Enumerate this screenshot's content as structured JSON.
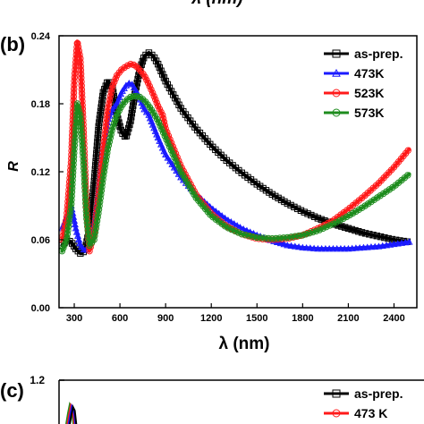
{
  "top_fragment": {
    "xlabel": "λ (nm)"
  },
  "panel_b": {
    "label": "(b)",
    "chart_data": {
      "type": "line",
      "xlabel": "λ (nm)",
      "ylabel": "R",
      "xlim": [
        200,
        2550
      ],
      "ylim": [
        0,
        0.24
      ],
      "xticks": [
        300,
        600,
        900,
        1200,
        1500,
        1800,
        2100,
        2400
      ],
      "xtick_labels": [
        "300",
        "600",
        "900",
        "1200",
        "1500",
        "1800",
        "2100",
        "2400"
      ],
      "yticks": [
        0,
        0.06,
        0.12,
        0.18,
        0.24
      ],
      "ytick_labels": [
        "0.00",
        "0.06",
        "0.12",
        "0.18",
        "0.24"
      ],
      "legend_position": "top-right",
      "series": [
        {
          "name": "as-prep.",
          "color": "#000000",
          "marker": "square",
          "x": [
            220,
            250,
            280,
            310,
            340,
            370,
            400,
            430,
            460,
            490,
            520,
            550,
            580,
            610,
            640,
            670,
            700,
            730,
            760,
            790,
            820,
            850,
            900,
            1000,
            1100,
            1200,
            1300,
            1400,
            1500,
            1600,
            1700,
            1800,
            1900,
            2000,
            2100,
            2200,
            2300,
            2400,
            2500
          ],
          "y": [
            0.055,
            0.06,
            0.058,
            0.052,
            0.048,
            0.05,
            0.07,
            0.11,
            0.16,
            0.19,
            0.2,
            0.195,
            0.17,
            0.155,
            0.15,
            0.165,
            0.19,
            0.21,
            0.222,
            0.225,
            0.222,
            0.215,
            0.2,
            0.176,
            0.158,
            0.143,
            0.13,
            0.119,
            0.109,
            0.1,
            0.092,
            0.085,
            0.079,
            0.074,
            0.07,
            0.066,
            0.063,
            0.06,
            0.058
          ]
        },
        {
          "name": "473K",
          "color": "#1a1aff",
          "marker": "triangle",
          "x": [
            220,
            250,
            280,
            310,
            340,
            370,
            400,
            430,
            460,
            490,
            520,
            550,
            580,
            610,
            640,
            660,
            680,
            700,
            730,
            760,
            790,
            820,
            850,
            900,
            1000,
            1100,
            1200,
            1300,
            1400,
            1500,
            1600,
            1700,
            1800,
            1900,
            2000,
            2100,
            2200,
            2300,
            2400,
            2500
          ],
          "y": [
            0.07,
            0.08,
            0.09,
            0.07,
            0.055,
            0.05,
            0.055,
            0.07,
            0.1,
            0.14,
            0.165,
            0.175,
            0.18,
            0.19,
            0.196,
            0.198,
            0.197,
            0.193,
            0.185,
            0.175,
            0.17,
            0.16,
            0.15,
            0.135,
            0.115,
            0.1,
            0.088,
            0.078,
            0.07,
            0.064,
            0.059,
            0.055,
            0.053,
            0.052,
            0.052,
            0.052,
            0.053,
            0.054,
            0.056,
            0.058
          ]
        },
        {
          "name": "523K",
          "color": "#ff1a1a",
          "marker": "circle",
          "x": [
            220,
            250,
            280,
            300,
            320,
            340,
            360,
            380,
            400,
            430,
            460,
            490,
            520,
            550,
            580,
            610,
            640,
            670,
            700,
            730,
            760,
            790,
            820,
            850,
            880,
            900,
            1000,
            1100,
            1200,
            1300,
            1400,
            1500,
            1600,
            1700,
            1800,
            1900,
            2000,
            2100,
            2200,
            2300,
            2400,
            2500
          ],
          "y": [
            0.06,
            0.08,
            0.13,
            0.2,
            0.235,
            0.22,
            0.16,
            0.09,
            0.05,
            0.065,
            0.1,
            0.14,
            0.175,
            0.195,
            0.205,
            0.21,
            0.213,
            0.215,
            0.214,
            0.21,
            0.205,
            0.197,
            0.188,
            0.178,
            0.17,
            0.158,
            0.125,
            0.1,
            0.083,
            0.072,
            0.065,
            0.061,
            0.06,
            0.061,
            0.064,
            0.07,
            0.077,
            0.087,
            0.098,
            0.11,
            0.124,
            0.14
          ]
        },
        {
          "name": "573K",
          "color": "#1e8c1e",
          "marker": "circle",
          "x": [
            220,
            250,
            280,
            300,
            320,
            340,
            360,
            380,
            400,
            430,
            460,
            490,
            520,
            550,
            580,
            610,
            640,
            670,
            700,
            730,
            760,
            790,
            820,
            850,
            900,
            1000,
            1100,
            1200,
            1300,
            1400,
            1500,
            1600,
            1700,
            1800,
            1900,
            2000,
            2100,
            2200,
            2300,
            2400,
            2500
          ],
          "y": [
            0.05,
            0.06,
            0.09,
            0.14,
            0.18,
            0.17,
            0.13,
            0.08,
            0.055,
            0.06,
            0.085,
            0.115,
            0.14,
            0.158,
            0.17,
            0.178,
            0.183,
            0.186,
            0.187,
            0.186,
            0.183,
            0.178,
            0.172,
            0.165,
            0.15,
            0.12,
            0.097,
            0.081,
            0.071,
            0.065,
            0.062,
            0.061,
            0.062,
            0.064,
            0.068,
            0.074,
            0.081,
            0.089,
            0.098,
            0.107,
            0.118
          ]
        }
      ]
    }
  },
  "panel_c": {
    "label": "(c)",
    "yaxis_top_label": "1.2",
    "legend": [
      {
        "name": "as-prep.",
        "color": "#000000",
        "marker": "square"
      },
      {
        "name": "473 K",
        "color": "#ff1a1a",
        "marker": "circle"
      }
    ]
  }
}
